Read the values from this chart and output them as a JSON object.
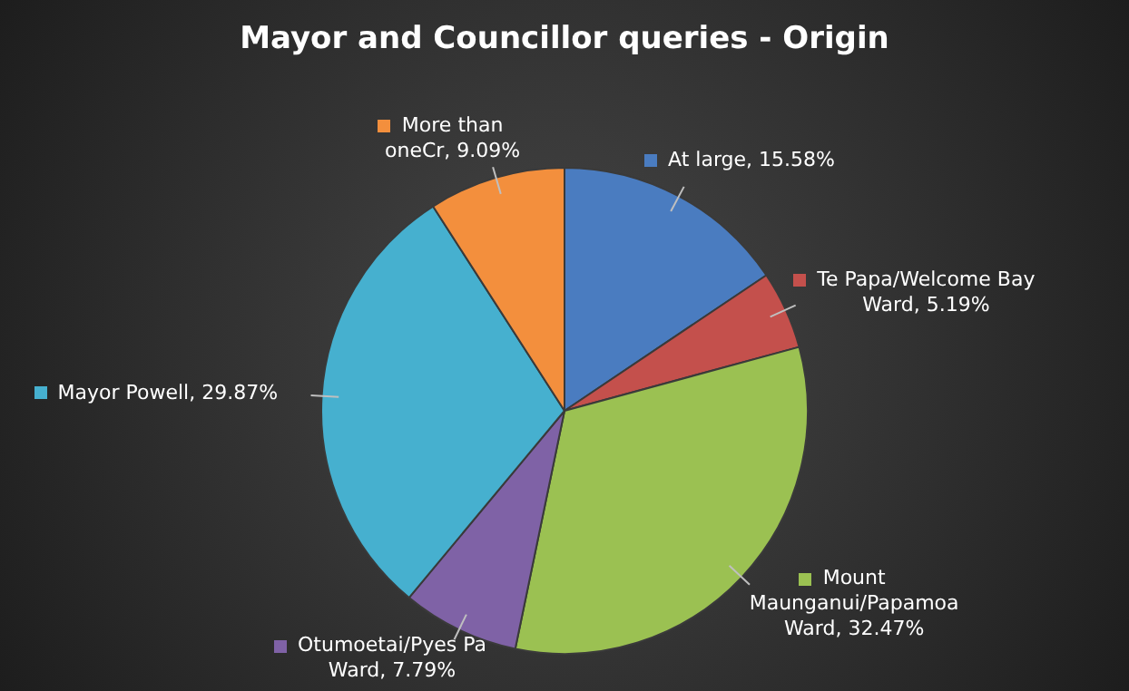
{
  "chart_data": {
    "type": "pie",
    "title": "Mayor and Councillor queries - Origin",
    "categories": [
      "At large",
      "Te Papa/Welcome Bay Ward",
      "Mount Maunganui/Papamoa Ward",
      "Otumoetai/Pyes Pa Ward",
      "Mayor Powell",
      "More than oneCr"
    ],
    "values": [
      15.58,
      5.19,
      32.47,
      7.79,
      29.87,
      9.09
    ],
    "value_labels": [
      "15.58%",
      "5.19%",
      "32.47%",
      "7.79%",
      "29.87%",
      "9.09%"
    ],
    "colors": [
      "#4a7cc0",
      "#c4504c",
      "#9bc152",
      "#7f62a6",
      "#46b0cf",
      "#f38f3d"
    ],
    "legend": "top left"
  }
}
